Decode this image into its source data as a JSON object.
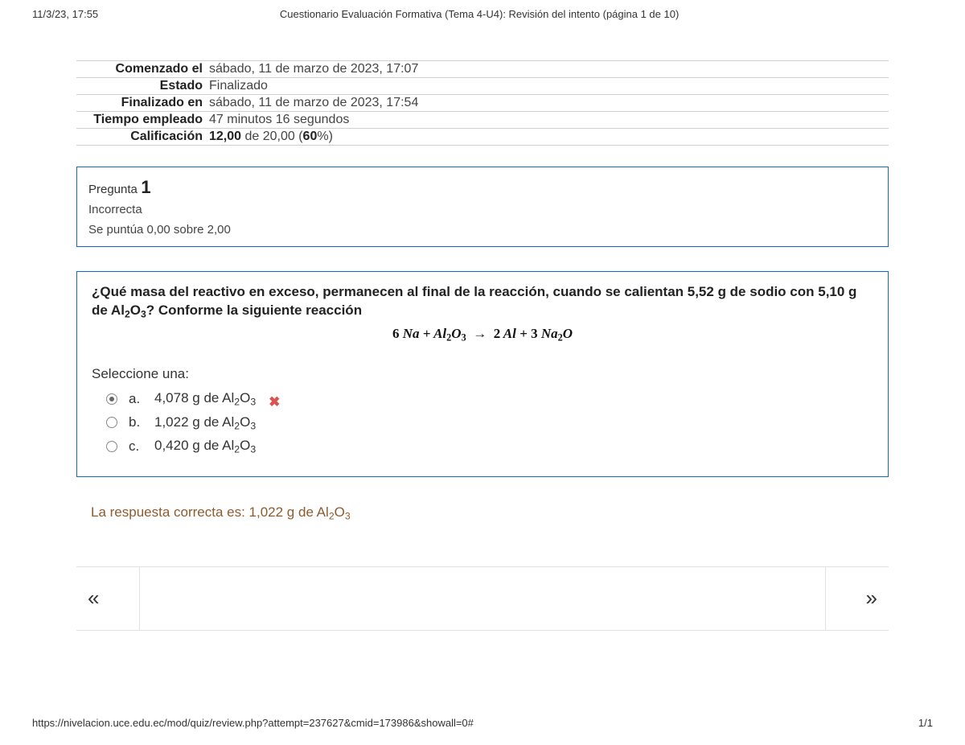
{
  "header": {
    "timestamp": "11/3/23, 17:55",
    "title": "Cuestionario Evaluación Formativa (Tema 4-U4): Revisión del intento (página 1 de 10)"
  },
  "summary": {
    "rows": [
      {
        "label": "Comenzado el",
        "value": "sábado, 11 de marzo de 2023, 17:07"
      },
      {
        "label": "Estado",
        "value": "Finalizado"
      },
      {
        "label": "Finalizado en",
        "value": "sábado, 11 de marzo de 2023, 17:54"
      },
      {
        "label": "Tiempo empleado",
        "value": "47 minutos 16 segundos"
      }
    ],
    "grade_label": "Calificación",
    "grade_bold1": "12,00",
    "grade_mid": " de 20,00 (",
    "grade_bold2": "60",
    "grade_tail": "%)"
  },
  "question": {
    "label": "Pregunta",
    "number": "1",
    "state": "Incorrecta",
    "score": "Se puntúa 0,00 sobre 2,00",
    "text_pre": "¿Qué masa del reactivo en exceso, permanecen al final de la reacción, cuando se calientan 5,52 g de sodio con 5,10 g de Al",
    "text_sub1": "2",
    "text_mid": "O",
    "text_sub2": "3",
    "text_post": "? Conforme la siguiente reacción",
    "equation_html": "6 Na + Al₂O₃  →  2 Al + 3 Na₂O",
    "select_label": "Seleccione una:",
    "options": [
      {
        "letter": "a.",
        "pre": "4,078 g de Al",
        "s1": "2",
        "mid": "O",
        "s2": "3",
        "checked": true,
        "wrong": true
      },
      {
        "letter": "b.",
        "pre": "1,022 g de Al",
        "s1": "2",
        "mid": "O",
        "s2": "3",
        "checked": false,
        "wrong": false
      },
      {
        "letter": "c.",
        "pre": "0,420 g de Al",
        "s1": "2",
        "mid": "O",
        "s2": "3",
        "checked": false,
        "wrong": false
      }
    ],
    "correct_pre": "La respuesta correcta es: 1,022 g de Al",
    "correct_s1": "2",
    "correct_mid": "O",
    "correct_s2": "3"
  },
  "footer": {
    "url": "https://nivelacion.uce.edu.ec/mod/quiz/review.php?attempt=237627&cmid=173986&showall=0#",
    "page": "1/1"
  },
  "colors": {
    "accent_border": "#0f6cbf",
    "wrong": "#d9534f",
    "correct_text": "#8e5b2f",
    "divider": "#e2e2e2"
  }
}
